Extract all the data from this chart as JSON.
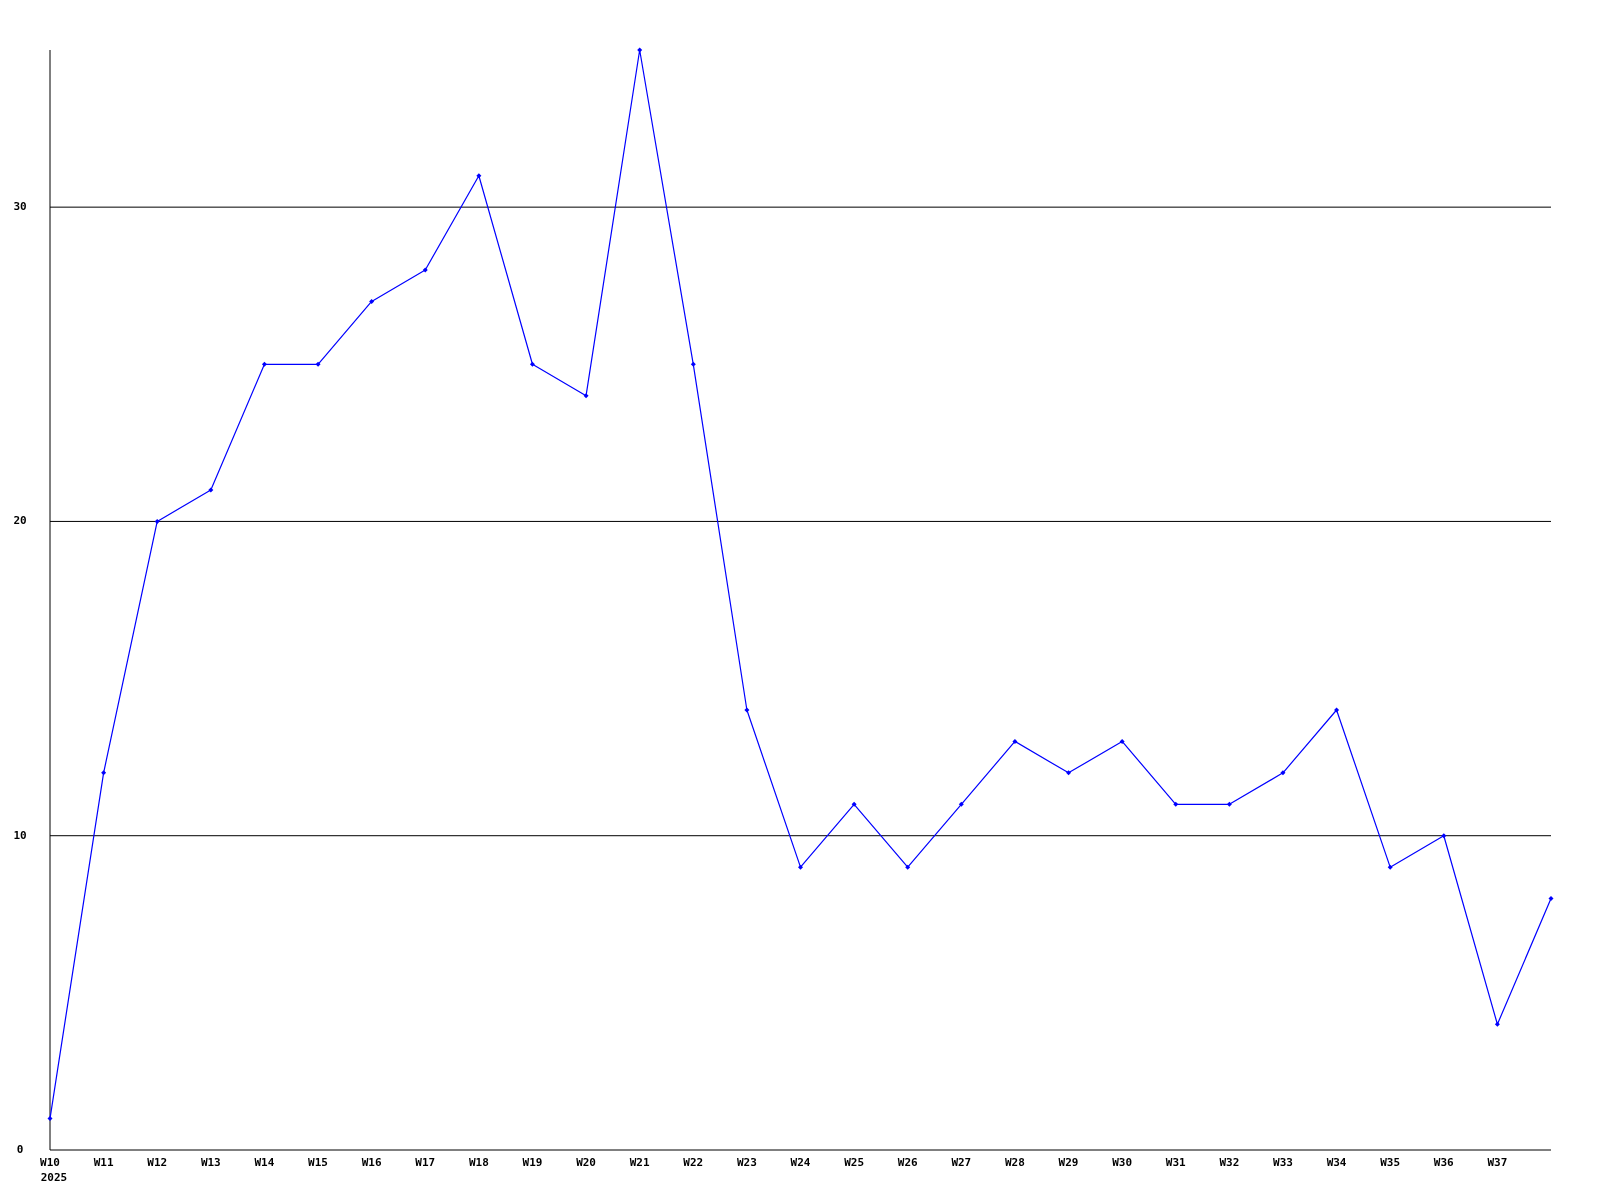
{
  "chart_data": {
    "type": "line",
    "categories": [
      "W10",
      "W11",
      "W12",
      "W13",
      "W14",
      "W15",
      "W16",
      "W17",
      "W18",
      "W19",
      "W20",
      "W21",
      "W22",
      "W23",
      "W24",
      "W25",
      "W26",
      "W27",
      "W28",
      "W29",
      "W30",
      "W31",
      "W32",
      "W33",
      "W34",
      "W35",
      "W36",
      "W37",
      null
    ],
    "series": [
      {
        "color": "#0000ff",
        "values": [
          1,
          12,
          20,
          21,
          25,
          25,
          27,
          28,
          31,
          25,
          24,
          35,
          25,
          14,
          9,
          11,
          9,
          11,
          13,
          12,
          13,
          11,
          11,
          12,
          14,
          9,
          10,
          4,
          8
        ]
      }
    ],
    "ylim": [
      0,
      35
    ],
    "yticks": [
      0,
      10,
      20,
      30
    ],
    "grid": "y",
    "marker": "diamond",
    "line_style": "solid",
    "annotations": [
      "2025"
    ]
  }
}
